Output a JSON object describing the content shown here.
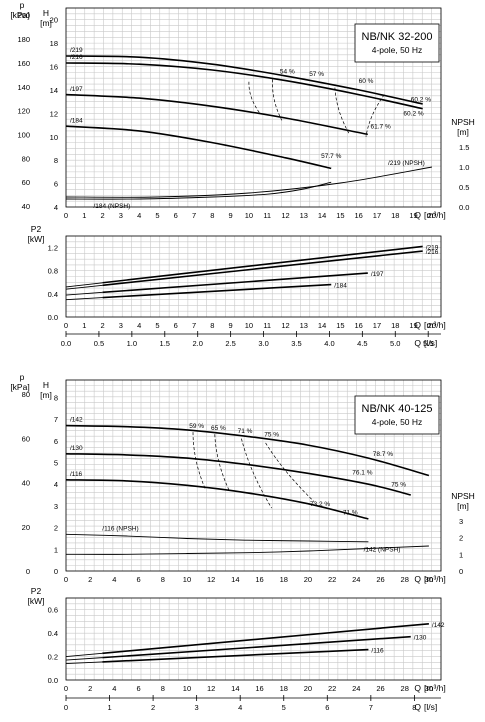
{
  "chart_data": [
    {
      "type": "line",
      "title": "NB/NK 32-200",
      "subtitle": "4-pole, 50 Hz",
      "x_axis": {
        "label": "Q [m³/h]",
        "ticks": [
          "0",
          "1",
          "2",
          "3",
          "4",
          "5",
          "6",
          "7",
          "8",
          "9",
          "10",
          "11",
          "12",
          "13",
          "14",
          "15",
          "16",
          "17",
          "18",
          "19",
          "20"
        ],
        "range": [
          0,
          20.5
        ]
      },
      "left_axis_outer": {
        "label": "p",
        "unit": "[kPa]",
        "ticks": [
          "40",
          "60",
          "80",
          "100",
          "120",
          "140",
          "160",
          "180",
          "200"
        ]
      },
      "left_axis_inner": {
        "label": "H",
        "unit": "[m]",
        "ticks": [
          "4",
          "6",
          "8",
          "10",
          "12",
          "14",
          "16",
          "18",
          "20"
        ],
        "range": [
          4,
          21
        ]
      },
      "right_axis": {
        "label": "NPSH",
        "unit": "[m]",
        "ticks": [
          "0.0",
          "0.5",
          "1.0",
          "1.5"
        ]
      },
      "series": [
        {
          "name": "/219",
          "x": [
            0,
            4,
            8,
            12,
            16,
            19.5
          ],
          "y": [
            16.9,
            16.8,
            16.2,
            15.2,
            14.0,
            12.8
          ]
        },
        {
          "name": "/216",
          "x": [
            0,
            4,
            8,
            12,
            16,
            19.5
          ],
          "y": [
            16.3,
            16.2,
            15.7,
            14.8,
            13.6,
            12.4
          ]
        },
        {
          "name": "/197",
          "x": [
            0,
            4,
            8,
            12,
            16.5
          ],
          "y": [
            13.6,
            13.3,
            12.6,
            11.6,
            10.2
          ]
        },
        {
          "name": "/184",
          "x": [
            0,
            4,
            8,
            12,
            14.5
          ],
          "y": [
            10.9,
            10.5,
            9.5,
            8.2,
            7.3
          ]
        }
      ],
      "npsh_series": [
        {
          "name": "/219 (NPSH)",
          "x": [
            0,
            5,
            10,
            15,
            20
          ],
          "y": [
            0.25,
            0.25,
            0.35,
            0.6,
            1.0
          ]
        },
        {
          "name": "/184 (NPSH)",
          "x": [
            0,
            4,
            8,
            11,
            13,
            14.5
          ],
          "y": [
            0.2,
            0.2,
            0.25,
            0.32,
            0.45,
            0.62
          ]
        }
      ],
      "efficiency_labels": [
        "54 %",
        "57 %",
        "60 %",
        "60.2 %",
        "60.2 %",
        "61.7 %",
        "57.7 %"
      ],
      "power_panel": {
        "y_axis": {
          "label": "P2",
          "unit": "[kW]",
          "ticks": [
            "0.0",
            "0.4",
            "0.8",
            "1.2"
          ],
          "range": [
            0,
            1.4
          ]
        },
        "x_axis": {
          "label": "Q [m³/h]",
          "ticks": [
            "0",
            "1",
            "2",
            "3",
            "4",
            "5",
            "6",
            "7",
            "8",
            "9",
            "10",
            "11",
            "12",
            "13",
            "14",
            "15",
            "16",
            "17",
            "18",
            "19",
            "20"
          ]
        },
        "x_axis_ls": {
          "label": "Q [l/s]",
          "ticks": [
            "0.0",
            "0.5",
            "1.0",
            "1.5",
            "2.0",
            "2.5",
            "3.0",
            "3.5",
            "4.0",
            "4.5",
            "5.0",
            "5.5"
          ]
        },
        "series": [
          {
            "name": "/219",
            "x": [
              0,
              19.5
            ],
            "y": [
              0.52,
              1.22
            ]
          },
          {
            "name": "/216",
            "x": [
              0,
              19.5
            ],
            "y": [
              0.48,
              1.14
            ]
          },
          {
            "name": "/197",
            "x": [
              0,
              16.5
            ],
            "y": [
              0.38,
              0.76
            ]
          },
          {
            "name": "/184",
            "x": [
              0,
              14.5
            ],
            "y": [
              0.3,
              0.56
            ]
          }
        ]
      }
    },
    {
      "type": "line",
      "title": "NB/NK 40-125",
      "subtitle": "4-pole, 50 Hz",
      "x_axis": {
        "label": "Q [m³/h]",
        "ticks": [
          "0",
          "2",
          "4",
          "6",
          "8",
          "10",
          "12",
          "14",
          "16",
          "18",
          "20",
          "22",
          "24",
          "26",
          "28",
          "30"
        ],
        "range": [
          0,
          31
        ]
      },
      "left_axis_outer": {
        "label": "p",
        "unit": "[kPa]",
        "ticks": [
          "0",
          "20",
          "40",
          "60",
          "80"
        ]
      },
      "left_axis_inner": {
        "label": "H",
        "unit": "[m]",
        "ticks": [
          "0",
          "1",
          "2",
          "3",
          "4",
          "5",
          "6",
          "7",
          "8"
        ],
        "range": [
          0,
          8.8
        ]
      },
      "right_axis": {
        "label": "NPSH",
        "unit": "[m]",
        "ticks": [
          "0",
          "1",
          "2",
          "3"
        ]
      },
      "series": [
        {
          "name": "/142",
          "x": [
            0,
            5,
            10,
            15,
            20,
            25,
            30
          ],
          "y": [
            6.7,
            6.65,
            6.5,
            6.2,
            5.8,
            5.2,
            4.4
          ]
        },
        {
          "name": "/130",
          "x": [
            0,
            5,
            10,
            15,
            20,
            25,
            28.5
          ],
          "y": [
            5.4,
            5.35,
            5.2,
            4.9,
            4.5,
            4.0,
            3.5
          ]
        },
        {
          "name": "/116",
          "x": [
            0,
            5,
            10,
            15,
            20,
            25
          ],
          "y": [
            4.2,
            4.15,
            3.95,
            3.6,
            3.1,
            2.4
          ]
        }
      ],
      "npsh_series": [
        {
          "name": "/116 (NPSH)",
          "x": [
            0,
            5,
            10,
            15,
            20,
            25
          ],
          "y": [
            2.2,
            2.1,
            1.95,
            1.85,
            1.8,
            1.75
          ]
        },
        {
          "name": "/142 (NPSH)",
          "x": [
            0,
            5,
            10,
            15,
            20,
            25,
            30
          ],
          "y": [
            1.0,
            1.0,
            1.05,
            1.1,
            1.2,
            1.35,
            1.5
          ]
        }
      ],
      "efficiency_labels": [
        "59 %",
        "65 %",
        "71 %",
        "75 %",
        "78.7 %",
        "76.1 %",
        "75 %",
        "73.2 %",
        "71 %"
      ],
      "power_panel": {
        "y_axis": {
          "label": "P2",
          "unit": "[kW]",
          "ticks": [
            "0.0",
            "0.2",
            "0.4",
            "0.6"
          ],
          "range": [
            0,
            0.7
          ]
        },
        "x_axis": {
          "label": "Q [m³/h]",
          "ticks": [
            "0",
            "2",
            "4",
            "6",
            "8",
            "10",
            "12",
            "14",
            "16",
            "18",
            "20",
            "22",
            "24",
            "26",
            "28",
            "30"
          ]
        },
        "x_axis_ls": {
          "label": "Q [l/s]",
          "ticks": [
            "0",
            "1",
            "2",
            "3",
            "4",
            "5",
            "6",
            "7",
            "8"
          ]
        },
        "series": [
          {
            "name": "/142",
            "x": [
              0,
              30
            ],
            "y": [
              0.2,
              0.48
            ]
          },
          {
            "name": "/130",
            "x": [
              0,
              28.5
            ],
            "y": [
              0.17,
              0.37
            ]
          },
          {
            "name": "/116",
            "x": [
              0,
              25
            ],
            "y": [
              0.14,
              0.26
            ]
          }
        ]
      }
    }
  ]
}
